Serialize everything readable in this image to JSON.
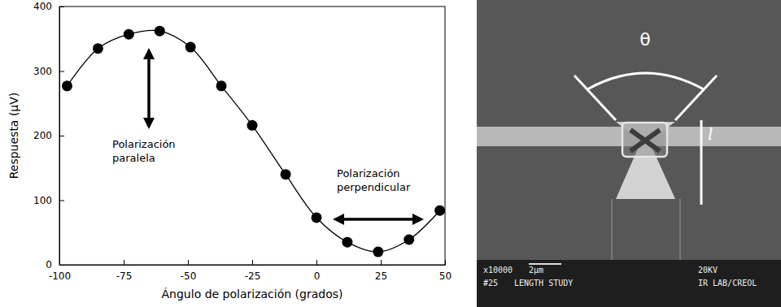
{
  "chart_data": {
    "type": "line",
    "x_label": "Ángulo de polarización (grados)",
    "y_label": "Respuesta (μV)",
    "x": [
      -97,
      -85,
      -73,
      -61,
      -49,
      -37,
      -25,
      -12,
      0,
      12,
      24,
      36,
      48
    ],
    "series": [
      {
        "color": "#000000",
        "marker": "circle",
        "line_style": "solid",
        "values": [
          277,
          335,
          357,
          362,
          337,
          277,
          216,
          140,
          73,
          35,
          20,
          39,
          84
        ]
      }
    ],
    "xlim": [
      -100,
      50
    ],
    "xticks": [
      -100,
      -75,
      -50,
      -25,
      0,
      25,
      50
    ],
    "ylim": [
      0,
      400
    ],
    "yticks": [
      0,
      100,
      200,
      300,
      400
    ],
    "grid": false,
    "annotations": [
      {
        "text": "Polarización paralela"
      },
      {
        "text": "Polarización perpendicular"
      }
    ]
  },
  "image": {
    "angle_label": "θ",
    "length_label": "l",
    "footer": [
      "x10000",
      "2μm",
      "20KV",
      "#25",
      "LENGTH STUDY",
      "IR LAB/CREOL"
    ]
  }
}
